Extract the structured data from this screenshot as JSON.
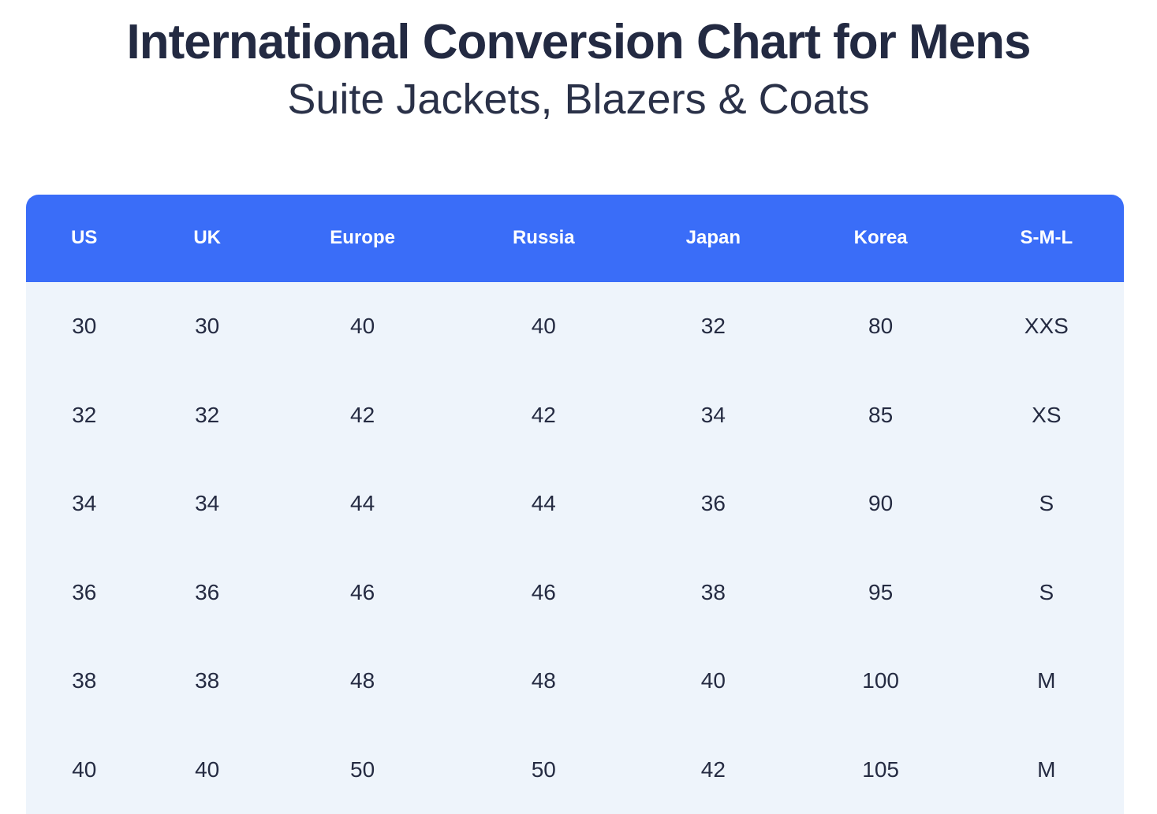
{
  "header": {
    "title": "International Conversion Chart for Mens",
    "subtitle": "Suite Jackets, Blazers & Coats"
  },
  "colors": {
    "header_bg": "#3A6DF8",
    "body_bg": "#EEF4FB",
    "text_dark": "#252B42",
    "header_text": "#FFFFFF",
    "page_bg": "#FFFFFF"
  },
  "chart_data": {
    "type": "table",
    "title": "International Conversion Chart for Mens",
    "subtitle": "Suite Jackets, Blazers & Coats",
    "columns": [
      "US",
      "UK",
      "Europe",
      "Russia",
      "Japan",
      "Korea",
      "S-M-L"
    ],
    "rows": [
      [
        "30",
        "30",
        "40",
        "40",
        "32",
        "80",
        "XXS"
      ],
      [
        "32",
        "32",
        "42",
        "42",
        "34",
        "85",
        "XS"
      ],
      [
        "34",
        "34",
        "44",
        "44",
        "36",
        "90",
        "S"
      ],
      [
        "36",
        "36",
        "46",
        "46",
        "38",
        "95",
        "S"
      ],
      [
        "38",
        "38",
        "48",
        "48",
        "40",
        "100",
        "M"
      ],
      [
        "40",
        "40",
        "50",
        "50",
        "42",
        "105",
        "M"
      ]
    ]
  }
}
